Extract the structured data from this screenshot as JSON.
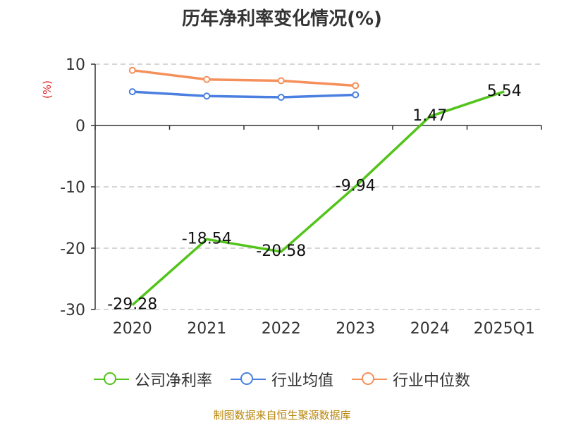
{
  "title": "历年净利率变化情况(%)",
  "footer": "制图数据来自恒生聚源数据库",
  "colors": {
    "company": "#52c41a",
    "industry_avg": "#4a7fe0",
    "industry_median": "#f5905a",
    "grid": "#c8c8c8",
    "axis": "#333333",
    "text": "#333333",
    "unit": "#e02020"
  },
  "chart_data": {
    "type": "line",
    "title": "历年净利率变化情况(%)",
    "ylabel": "(%)",
    "ylim": [
      -30,
      10
    ],
    "yticks": [
      10,
      0,
      -10,
      -20,
      -30
    ],
    "categories": [
      "2020",
      "2021",
      "2022",
      "2023",
      "2024",
      "2025Q1"
    ],
    "grid": true,
    "legend_position": "bottom",
    "series": [
      {
        "name": "公司净利率",
        "color": "#52c41a",
        "values": [
          -29.28,
          -18.54,
          -20.58,
          -9.94,
          1.47,
          5.54
        ],
        "labels": [
          "-29.28",
          "-18.54",
          "-20.58",
          "-9.94",
          "1.47",
          "5.54"
        ],
        "markers": false
      },
      {
        "name": "行业均值",
        "color": "#4a7fe0",
        "values": [
          5.5,
          4.8,
          4.6,
          5.0,
          null,
          null
        ],
        "markers": true
      },
      {
        "name": "行业中位数",
        "color": "#f5905a",
        "values": [
          9.0,
          7.5,
          7.3,
          6.5,
          null,
          null
        ],
        "markers": true
      }
    ]
  }
}
